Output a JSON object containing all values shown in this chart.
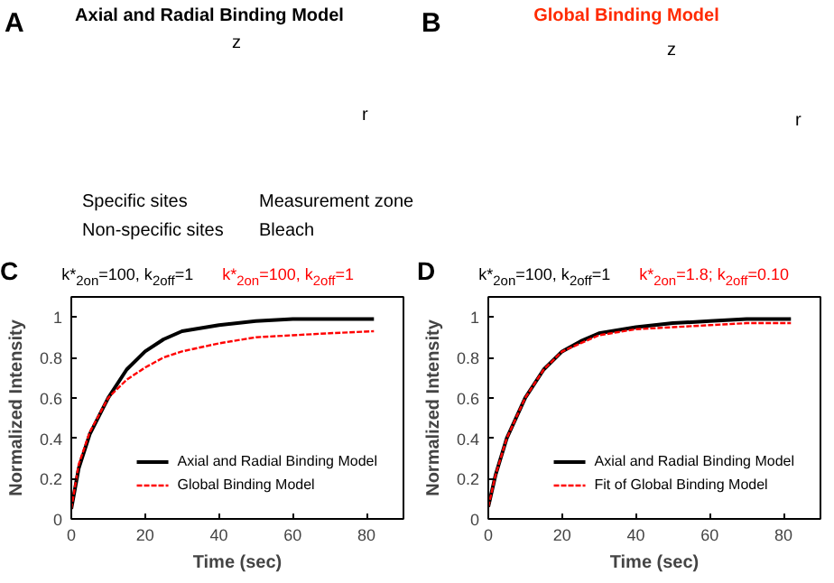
{
  "chart_data": [
    {
      "type": "other",
      "title": "Axial and Radial Binding Model",
      "annotations": [
        "A",
        "z",
        "r",
        "Specific sites",
        "Measurement zone",
        "Non-specific sites",
        "Bleach"
      ]
    },
    {
      "type": "other",
      "title": "Global Binding Model",
      "annotations": [
        "B",
        "z",
        "r"
      ]
    },
    {
      "type": "line",
      "title": "C",
      "annotations": [
        "k*$_{2on}$=100, k$_{2off}$=1",
        "k*$_{2on}$=100, k$_{2off}$=1"
      ],
      "xlabel": "Time (sec)",
      "ylabel": "Normalized Intensity",
      "xlim": [
        0,
        90
      ],
      "ylim": [
        0,
        1.1
      ],
      "xticks": [
        0,
        20,
        40,
        60,
        80
      ],
      "yticks": [
        0,
        0.2,
        0.4,
        0.6,
        0.8,
        1
      ],
      "grid": false,
      "legend": "bottom right",
      "marker": "none",
      "x": [
        0,
        2,
        5,
        10,
        15,
        20,
        25,
        30,
        40,
        50,
        60,
        70,
        82
      ],
      "series": [
        {
          "name": "Axial and Radial Binding Model",
          "color": "#000000",
          "line_style": "solid",
          "values": [
            0.05,
            0.25,
            0.42,
            0.6,
            0.74,
            0.83,
            0.89,
            0.93,
            0.96,
            0.98,
            0.99,
            0.99,
            0.99
          ]
        },
        {
          "name": "Global Binding Model",
          "color": "#ff0000",
          "line_style": "dashed",
          "values": [
            0.05,
            0.27,
            0.43,
            0.6,
            0.69,
            0.75,
            0.8,
            0.83,
            0.87,
            0.9,
            0.91,
            0.92,
            0.93
          ]
        }
      ]
    },
    {
      "type": "line",
      "title": "D",
      "annotations": [
        "k*$_{2on}$=100, k$_{2off}$=1",
        "k*$_{2on}$=1.8; k$_{2off}$=0.10"
      ],
      "xlabel": "Time (sec)",
      "ylabel": "Normalized Intensity",
      "xlim": [
        0,
        90
      ],
      "ylim": [
        0,
        1.1
      ],
      "xticks": [
        0,
        20,
        40,
        60,
        80
      ],
      "yticks": [
        0,
        0.2,
        0.4,
        0.6,
        0.8,
        1
      ],
      "grid": false,
      "legend": "bottom right",
      "marker": "none",
      "x": [
        0,
        2,
        5,
        10,
        15,
        20,
        25,
        30,
        40,
        50,
        60,
        70,
        82
      ],
      "series": [
        {
          "name": "Axial and Radial Binding Model",
          "color": "#000000",
          "line_style": "solid",
          "values": [
            0.06,
            0.22,
            0.4,
            0.6,
            0.74,
            0.83,
            0.88,
            0.92,
            0.95,
            0.97,
            0.98,
            0.99,
            0.99
          ]
        },
        {
          "name": "Fit of Global Binding Model",
          "color": "#ff0000",
          "line_style": "dashed",
          "values": [
            0.06,
            0.22,
            0.4,
            0.6,
            0.74,
            0.83,
            0.87,
            0.91,
            0.94,
            0.95,
            0.96,
            0.97,
            0.97
          ]
        }
      ]
    }
  ]
}
